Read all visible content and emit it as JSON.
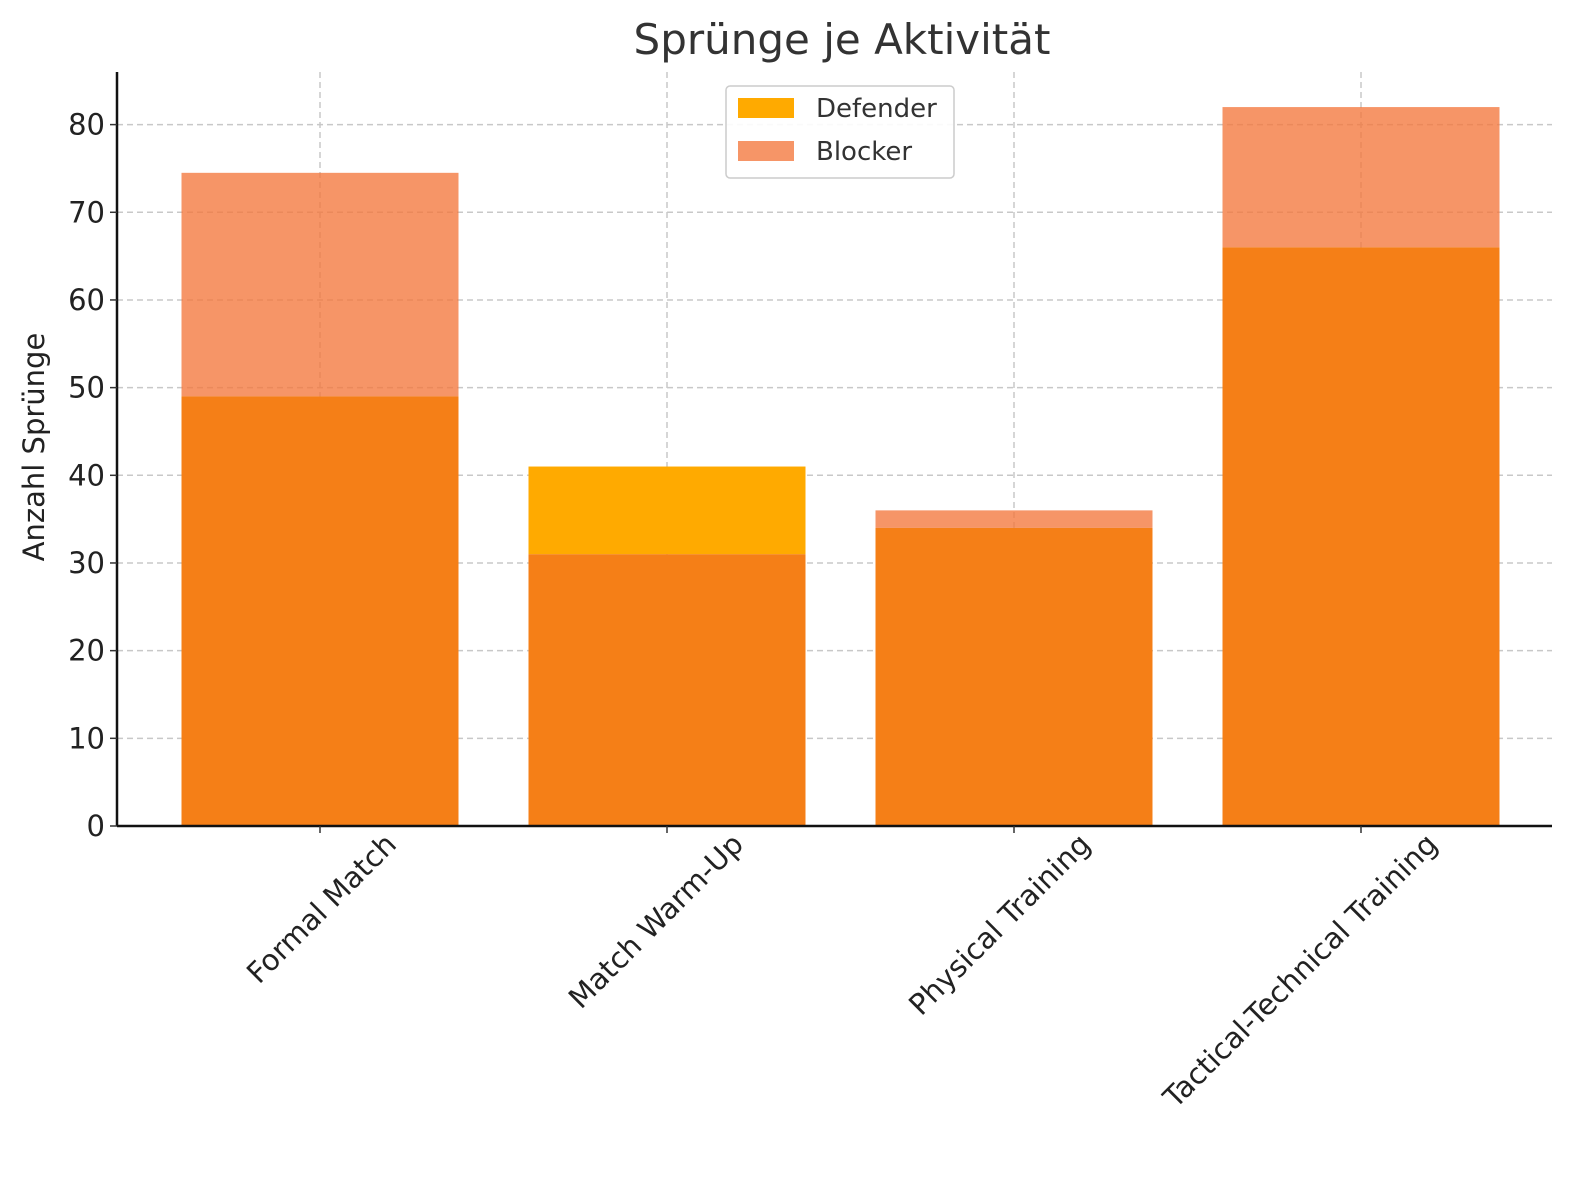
{
  "chart_data": {
    "type": "bar",
    "title": "Sprünge je Aktivität",
    "xlabel": "",
    "ylabel": "Anzahl Sprünge",
    "ylim": [
      0,
      86
    ],
    "yticks": [
      0,
      10,
      20,
      30,
      40,
      50,
      60,
      70,
      80
    ],
    "grid": true,
    "legend_position": "top-center",
    "categories": [
      "Formal Match",
      "Match Warm-Up",
      "Physical Training",
      "Tactical-Technical Training"
    ],
    "series": [
      {
        "name": "Defender",
        "values": [
          49,
          41,
          34,
          66
        ],
        "color": "#ffaa00"
      },
      {
        "name": "Blocker",
        "values": [
          74.5,
          31,
          36,
          82
        ],
        "color": "#f4773c"
      }
    ],
    "overlap_color": "#f57f17"
  }
}
